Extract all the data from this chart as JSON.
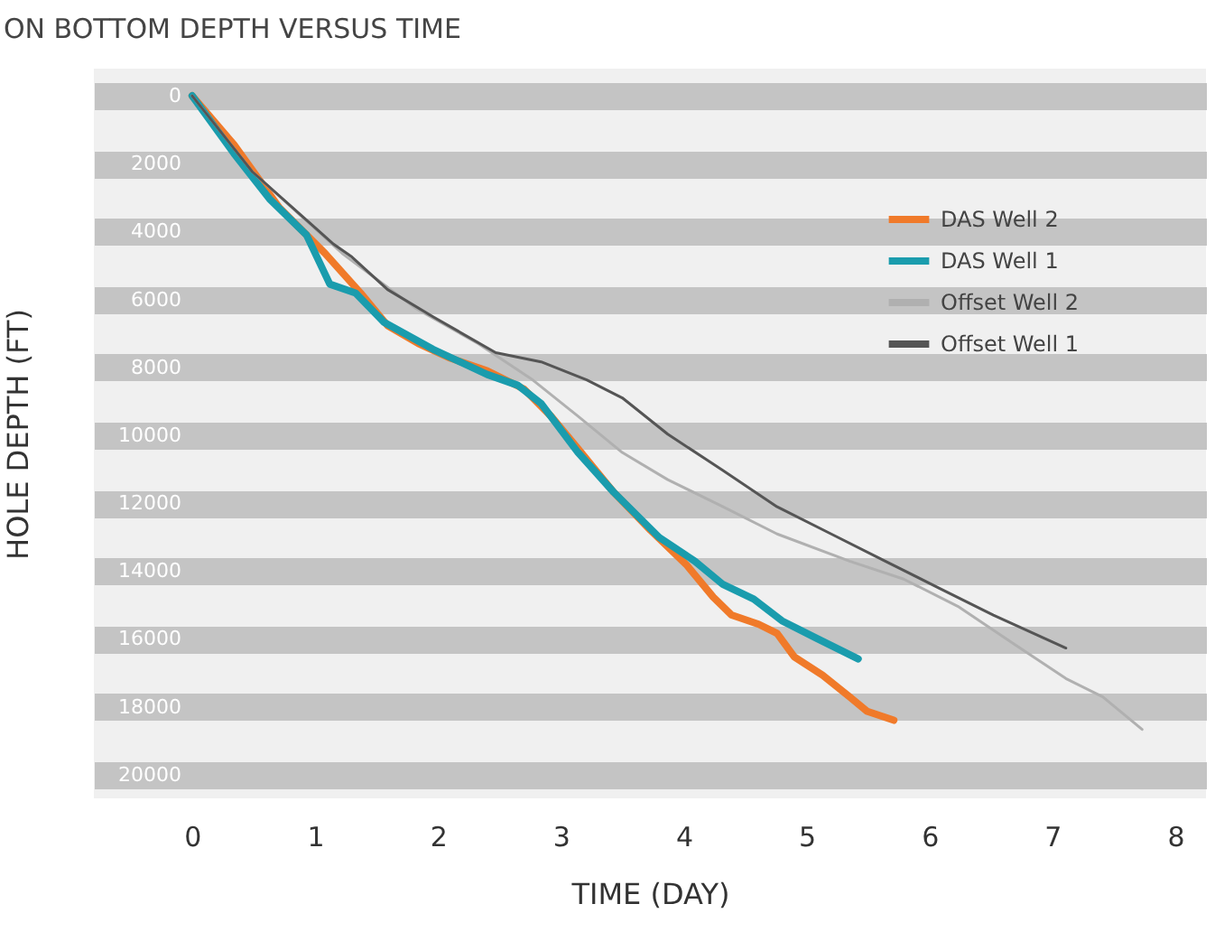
{
  "chart_data": {
    "type": "line",
    "title": "ON BOTTOM DEPTH VERSUS TIME",
    "xlabel": "TIME (DAY)",
    "ylabel": "HOLE DEPTH (FT)",
    "xlim": [
      -0.8,
      8.25
    ],
    "xticks": [
      0,
      1,
      2,
      3,
      4,
      5,
      6,
      7,
      8
    ],
    "ylim": [
      20700,
      -800
    ],
    "yticks": [
      0,
      2000,
      4000,
      6000,
      8000,
      10000,
      12000,
      14000,
      16000,
      18000,
      20000
    ],
    "grid": "y",
    "legend": "top right",
    "line_style": "solid",
    "marker": "none",
    "series": [
      {
        "name": "DAS Well 2",
        "color": "#f07a2a",
        "x": [
          0,
          0.34,
          0.71,
          1.08,
          1.37,
          1.59,
          1.84,
          2.1,
          2.4,
          2.7,
          2.92,
          3.14,
          3.43,
          3.73,
          4.02,
          4.24,
          4.39,
          4.61,
          4.76,
          4.9,
          5.13,
          5.35,
          5.49,
          5.71
        ],
        "values": [
          0,
          1440,
          3300,
          4640,
          5810,
          6770,
          7300,
          7730,
          8100,
          8640,
          9440,
          10400,
          11680,
          12800,
          13810,
          14770,
          15300,
          15570,
          15840,
          16530,
          17070,
          17710,
          18130,
          18400
        ]
      },
      {
        "name": "DAS Well 1",
        "color": "#1a9cad",
        "x": [
          0,
          0.34,
          0.63,
          0.93,
          1.12,
          1.33,
          1.56,
          1.96,
          2.4,
          2.65,
          2.84,
          3.14,
          3.43,
          3.8,
          4.09,
          4.32,
          4.57,
          4.8,
          5.09,
          5.42
        ],
        "values": [
          0,
          1700,
          3040,
          4100,
          5550,
          5810,
          6670,
          7470,
          8210,
          8530,
          9070,
          10510,
          11680,
          13010,
          13710,
          14400,
          14830,
          15470,
          16000,
          16590
        ]
      },
      {
        "name": "Offset Well 2",
        "color": "#b0b0b0",
        "x": [
          0,
          0.49,
          1.22,
          1.81,
          2.33,
          2.77,
          3.14,
          3.5,
          3.87,
          4.32,
          4.76,
          5.35,
          5.79,
          6.23,
          6.67,
          7.11,
          7.41,
          7.73
        ],
        "values": [
          0,
          2240,
          4640,
          6240,
          7310,
          8370,
          9440,
          10510,
          11310,
          12110,
          12910,
          13710,
          14240,
          15040,
          16110,
          17170,
          17710,
          18670
        ]
      },
      {
        "name": "Offset Well 1",
        "color": "#555555",
        "x": [
          0,
          0.49,
          1.15,
          1.3,
          1.59,
          1.96,
          2.47,
          2.84,
          3.21,
          3.5,
          3.87,
          4.32,
          4.76,
          5.2,
          5.64,
          6.08,
          6.52,
          7.11
        ],
        "values": [
          0,
          2240,
          4370,
          4750,
          5710,
          6510,
          7570,
          7840,
          8370,
          8900,
          9970,
          11040,
          12110,
          12910,
          13710,
          14510,
          15300,
          16270
        ]
      }
    ]
  }
}
